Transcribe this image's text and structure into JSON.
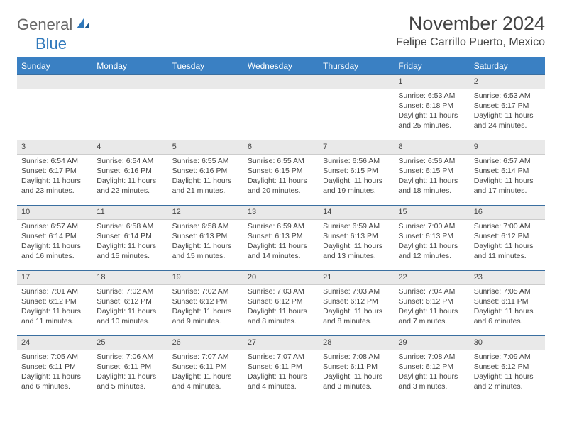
{
  "logo": {
    "text1": "General",
    "text2": "Blue"
  },
  "title": "November 2024",
  "location": "Felipe Carrillo Puerto, Mexico",
  "colors": {
    "header_bg": "#3a80c3",
    "header_text": "#ffffff",
    "daynum_bg": "#e9e9e9",
    "row_border": "#3a6fa0",
    "text": "#444444",
    "logo_gray": "#666666",
    "logo_blue": "#2f78bb",
    "background": "#ffffff"
  },
  "day_headers": [
    "Sunday",
    "Monday",
    "Tuesday",
    "Wednesday",
    "Thursday",
    "Friday",
    "Saturday"
  ],
  "weeks": [
    [
      {
        "num": "",
        "lines": []
      },
      {
        "num": "",
        "lines": []
      },
      {
        "num": "",
        "lines": []
      },
      {
        "num": "",
        "lines": []
      },
      {
        "num": "",
        "lines": []
      },
      {
        "num": "1",
        "lines": [
          "Sunrise: 6:53 AM",
          "Sunset: 6:18 PM",
          "Daylight: 11 hours and 25 minutes."
        ]
      },
      {
        "num": "2",
        "lines": [
          "Sunrise: 6:53 AM",
          "Sunset: 6:17 PM",
          "Daylight: 11 hours and 24 minutes."
        ]
      }
    ],
    [
      {
        "num": "3",
        "lines": [
          "Sunrise: 6:54 AM",
          "Sunset: 6:17 PM",
          "Daylight: 11 hours and 23 minutes."
        ]
      },
      {
        "num": "4",
        "lines": [
          "Sunrise: 6:54 AM",
          "Sunset: 6:16 PM",
          "Daylight: 11 hours and 22 minutes."
        ]
      },
      {
        "num": "5",
        "lines": [
          "Sunrise: 6:55 AM",
          "Sunset: 6:16 PM",
          "Daylight: 11 hours and 21 minutes."
        ]
      },
      {
        "num": "6",
        "lines": [
          "Sunrise: 6:55 AM",
          "Sunset: 6:15 PM",
          "Daylight: 11 hours and 20 minutes."
        ]
      },
      {
        "num": "7",
        "lines": [
          "Sunrise: 6:56 AM",
          "Sunset: 6:15 PM",
          "Daylight: 11 hours and 19 minutes."
        ]
      },
      {
        "num": "8",
        "lines": [
          "Sunrise: 6:56 AM",
          "Sunset: 6:15 PM",
          "Daylight: 11 hours and 18 minutes."
        ]
      },
      {
        "num": "9",
        "lines": [
          "Sunrise: 6:57 AM",
          "Sunset: 6:14 PM",
          "Daylight: 11 hours and 17 minutes."
        ]
      }
    ],
    [
      {
        "num": "10",
        "lines": [
          "Sunrise: 6:57 AM",
          "Sunset: 6:14 PM",
          "Daylight: 11 hours and 16 minutes."
        ]
      },
      {
        "num": "11",
        "lines": [
          "Sunrise: 6:58 AM",
          "Sunset: 6:14 PM",
          "Daylight: 11 hours and 15 minutes."
        ]
      },
      {
        "num": "12",
        "lines": [
          "Sunrise: 6:58 AM",
          "Sunset: 6:13 PM",
          "Daylight: 11 hours and 15 minutes."
        ]
      },
      {
        "num": "13",
        "lines": [
          "Sunrise: 6:59 AM",
          "Sunset: 6:13 PM",
          "Daylight: 11 hours and 14 minutes."
        ]
      },
      {
        "num": "14",
        "lines": [
          "Sunrise: 6:59 AM",
          "Sunset: 6:13 PM",
          "Daylight: 11 hours and 13 minutes."
        ]
      },
      {
        "num": "15",
        "lines": [
          "Sunrise: 7:00 AM",
          "Sunset: 6:13 PM",
          "Daylight: 11 hours and 12 minutes."
        ]
      },
      {
        "num": "16",
        "lines": [
          "Sunrise: 7:00 AM",
          "Sunset: 6:12 PM",
          "Daylight: 11 hours and 11 minutes."
        ]
      }
    ],
    [
      {
        "num": "17",
        "lines": [
          "Sunrise: 7:01 AM",
          "Sunset: 6:12 PM",
          "Daylight: 11 hours and 11 minutes."
        ]
      },
      {
        "num": "18",
        "lines": [
          "Sunrise: 7:02 AM",
          "Sunset: 6:12 PM",
          "Daylight: 11 hours and 10 minutes."
        ]
      },
      {
        "num": "19",
        "lines": [
          "Sunrise: 7:02 AM",
          "Sunset: 6:12 PM",
          "Daylight: 11 hours and 9 minutes."
        ]
      },
      {
        "num": "20",
        "lines": [
          "Sunrise: 7:03 AM",
          "Sunset: 6:12 PM",
          "Daylight: 11 hours and 8 minutes."
        ]
      },
      {
        "num": "21",
        "lines": [
          "Sunrise: 7:03 AM",
          "Sunset: 6:12 PM",
          "Daylight: 11 hours and 8 minutes."
        ]
      },
      {
        "num": "22",
        "lines": [
          "Sunrise: 7:04 AM",
          "Sunset: 6:12 PM",
          "Daylight: 11 hours and 7 minutes."
        ]
      },
      {
        "num": "23",
        "lines": [
          "Sunrise: 7:05 AM",
          "Sunset: 6:11 PM",
          "Daylight: 11 hours and 6 minutes."
        ]
      }
    ],
    [
      {
        "num": "24",
        "lines": [
          "Sunrise: 7:05 AM",
          "Sunset: 6:11 PM",
          "Daylight: 11 hours and 6 minutes."
        ]
      },
      {
        "num": "25",
        "lines": [
          "Sunrise: 7:06 AM",
          "Sunset: 6:11 PM",
          "Daylight: 11 hours and 5 minutes."
        ]
      },
      {
        "num": "26",
        "lines": [
          "Sunrise: 7:07 AM",
          "Sunset: 6:11 PM",
          "Daylight: 11 hours and 4 minutes."
        ]
      },
      {
        "num": "27",
        "lines": [
          "Sunrise: 7:07 AM",
          "Sunset: 6:11 PM",
          "Daylight: 11 hours and 4 minutes."
        ]
      },
      {
        "num": "28",
        "lines": [
          "Sunrise: 7:08 AM",
          "Sunset: 6:11 PM",
          "Daylight: 11 hours and 3 minutes."
        ]
      },
      {
        "num": "29",
        "lines": [
          "Sunrise: 7:08 AM",
          "Sunset: 6:12 PM",
          "Daylight: 11 hours and 3 minutes."
        ]
      },
      {
        "num": "30",
        "lines": [
          "Sunrise: 7:09 AM",
          "Sunset: 6:12 PM",
          "Daylight: 11 hours and 2 minutes."
        ]
      }
    ]
  ]
}
